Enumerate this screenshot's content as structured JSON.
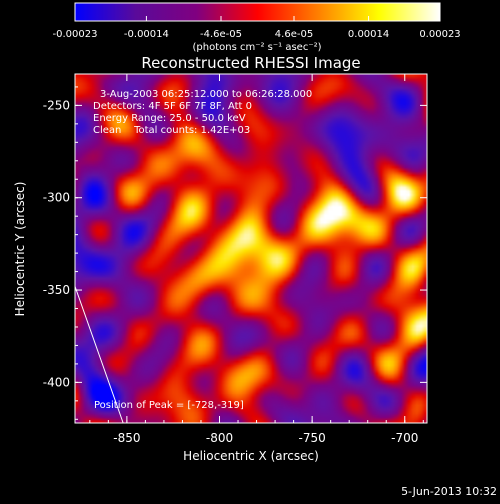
{
  "chart_data": {
    "type": "heatmap",
    "title": "Reconstructed RHESSI Image",
    "xlabel": "Heliocentric X (arcsec)",
    "ylabel": "Heliocentric Y (arcsec)",
    "xlim": [
      -878,
      -688
    ],
    "ylim": [
      -422,
      -233
    ],
    "x_ticks": [
      -850,
      -800,
      -750,
      -700
    ],
    "x_tick_labels": [
      "-850",
      "-800",
      "-750",
      "-700"
    ],
    "y_ticks": [
      -400,
      -350,
      -300,
      -250
    ],
    "y_tick_labels": [
      "-400",
      "-350",
      "-300",
      "-250"
    ],
    "colorbar": {
      "range": [
        -0.00023,
        0.00023
      ],
      "ticks": [
        -0.00023,
        -0.00014,
        -4.6e-05,
        4.6e-05,
        0.00014,
        0.00023
      ],
      "tick_labels": [
        "-0.00023",
        "-0.00014",
        "-4.6e-05",
        "4.6e-05",
        "0.00014",
        "0.00023"
      ],
      "unit": "(photons cm⁻² s⁻¹ asec⁻²)",
      "colormap": [
        "#0000ff",
        "#5a0a9a",
        "#800080",
        "#ff0000",
        "#ff8000",
        "#ffff00",
        "#ffffff"
      ]
    },
    "annotations": [
      "3-Aug-2003 06:25:12.000 to 06:26:28.000",
      "Detectors: 4F 5F 6F 7F 8F, Att 0",
      "Energy Range: 25.0 - 50.0 keV",
      "Clean    Total counts: 1.42E+03"
    ],
    "peak_label": "Position of Peak = [-728,-319]",
    "peak": [
      -728,
      -319
    ],
    "limb_line": [
      [
        -878,
        -348
      ],
      [
        -852,
        -422
      ]
    ]
  },
  "footer": {
    "timestamp": "5-Jun-2013 10:32"
  }
}
